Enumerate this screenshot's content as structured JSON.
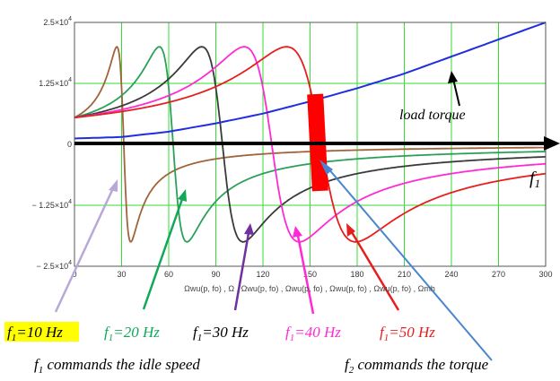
{
  "chart_data": {
    "type": "line",
    "xlim": [
      0,
      300
    ],
    "ylim": [
      -25000,
      25000
    ],
    "x_ticks": [
      "0",
      "30",
      "60",
      "90",
      "120",
      "150",
      "180",
      "210",
      "240",
      "270",
      "300"
    ],
    "y_ticks": [
      {
        "value": 25000,
        "label": "2.5×10"
      },
      {
        "value": 12500,
        "label": "1.25×10"
      },
      {
        "value": 0,
        "label": "0"
      },
      {
        "value": -12500,
        "label": "− 1.25×10"
      },
      {
        "value": -25000,
        "label": "− 2.5×10"
      }
    ],
    "y_tick_exponent": "4",
    "xlabel": "Ωwu(p, fo) , Ω , Ωwu(p, fo) , Ωwu(p, fo) , Ωwu(p, fo) , Ωwu(p, fo) , Ωmh",
    "grid": true,
    "series": [
      {
        "name": "f1=10 Hz",
        "color": "#a0643c",
        "ns": 31.4,
        "peak": 20000
      },
      {
        "name": "f1=20 Hz",
        "color": "#2ca05a",
        "ns": 62.8,
        "peak": 20000
      },
      {
        "name": "f1=30 Hz",
        "color": "#3a3a3a",
        "ns": 94.2,
        "peak": 20000
      },
      {
        "name": "f1=40 Hz",
        "color": "#ff2ad4",
        "ns": 125.6,
        "peak": 20000
      },
      {
        "name": "f1=50 Hz",
        "color": "#e61e1e",
        "ns": 157.0,
        "peak": 20000
      },
      {
        "name": "load torque",
        "color": "#1f2fe0",
        "points": [
          [
            0,
            1200
          ],
          [
            30,
            1500
          ],
          [
            60,
            2600
          ],
          [
            90,
            4300
          ],
          [
            120,
            6300
          ],
          [
            150,
            8800
          ],
          [
            180,
            11500
          ],
          [
            210,
            14500
          ],
          [
            240,
            18000
          ],
          [
            270,
            21500
          ],
          [
            300,
            25000
          ]
        ]
      }
    ]
  },
  "labels": {
    "load_torque": "load torque",
    "f1_axis": "f",
    "f1_axis_sub": "1",
    "f1_10": "=10 Hz",
    "f1_20": "=20 Hz",
    "f1_30": "=30 Hz",
    "f1_40": "=40 Hz",
    "f1_50": "=50 Hz",
    "f_letter": "f",
    "sub1": "1",
    "sub2": "2",
    "idle_caption": " commands the idle speed",
    "torque_caption": " commands the torque"
  },
  "colors": {
    "grid": "#33dd33",
    "plot_bg": "#ffffff",
    "highlight": "#ffff00",
    "torque_bar": "#ff0000",
    "axis_arrow": "#000000",
    "arrow_blue": "#4a86d0",
    "arrow_lilac": "#b8a8d8",
    "arrow_purple": "#7030a0"
  }
}
